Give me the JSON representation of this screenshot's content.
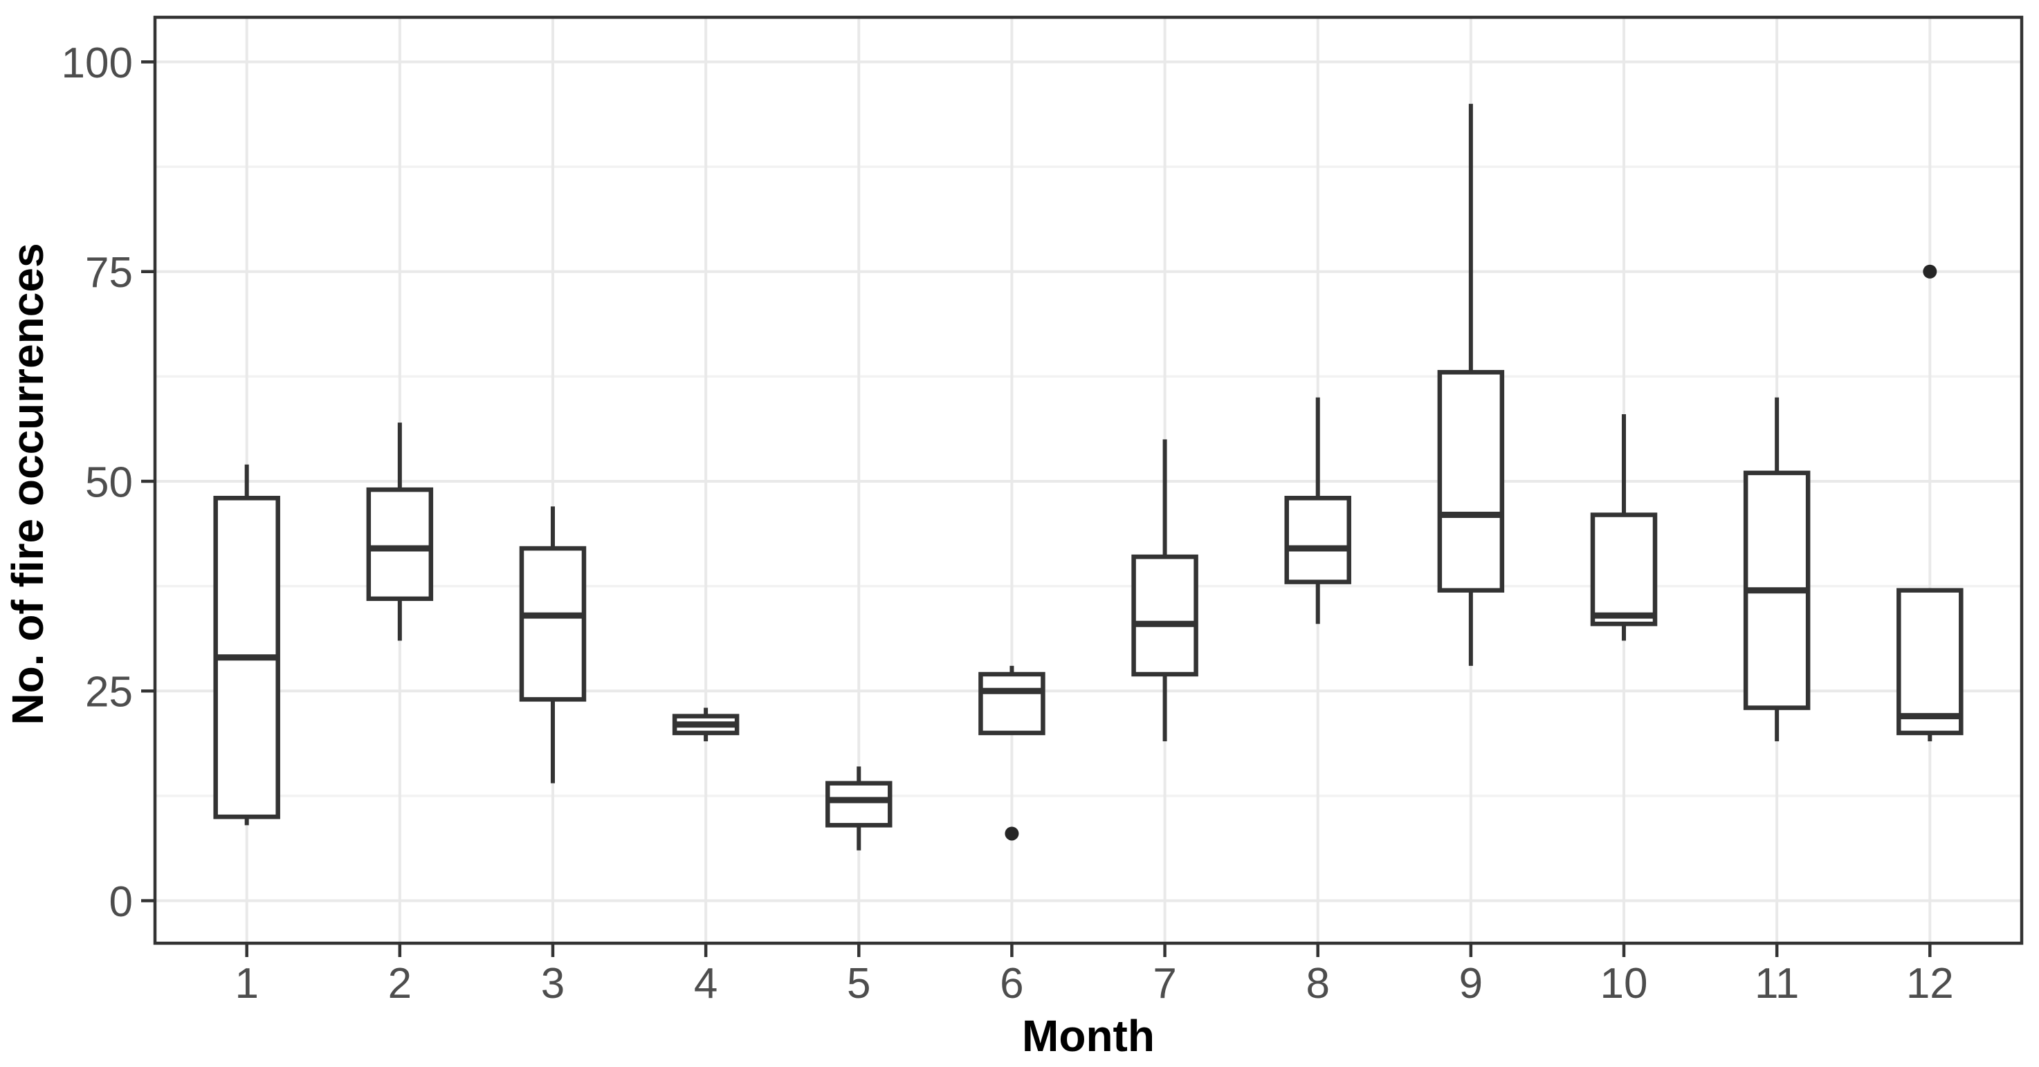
{
  "figure": {
    "background": "#ffffff",
    "description": "Boxplot of number of fire occurrences per month"
  },
  "chart_data": {
    "type": "boxplot",
    "title": "",
    "xlabel": "Month",
    "ylabel": "No. of fire occurrences",
    "x_tick_labels": [
      "1",
      "2",
      "3",
      "4",
      "5",
      "6",
      "7",
      "8",
      "9",
      "10",
      "11",
      "12"
    ],
    "y_tick_labels": [
      "0",
      "25",
      "50",
      "75",
      "100"
    ],
    "y_major_breaks": [
      0,
      25,
      50,
      75,
      100
    ],
    "y_minor_breaks": [
      12.5,
      37.5,
      62.5,
      87.5
    ],
    "ylim": [
      -5.2,
      105.3
    ],
    "xlim_units": [
      0.4,
      12.6
    ],
    "grid": "horizontal major+minor, vertical major at each month",
    "legend": "none",
    "series": [
      {
        "month": "1",
        "min": 9,
        "q1": 10,
        "median": 29,
        "q3": 48,
        "max": 52,
        "outliers": []
      },
      {
        "month": "2",
        "min": 31,
        "q1": 36,
        "median": 42,
        "q3": 49,
        "max": 57,
        "outliers": []
      },
      {
        "month": "3",
        "min": 14,
        "q1": 24,
        "median": 34,
        "q3": 42,
        "max": 47,
        "outliers": []
      },
      {
        "month": "4",
        "min": 19,
        "q1": 20,
        "median": 21,
        "q3": 22,
        "max": 23,
        "outliers": []
      },
      {
        "month": "5",
        "min": 6,
        "q1": 9,
        "median": 12,
        "q3": 14,
        "max": 16,
        "outliers": []
      },
      {
        "month": "6",
        "min": 20,
        "q1": 20,
        "median": 25,
        "q3": 27,
        "max": 28,
        "outliers": [
          8
        ]
      },
      {
        "month": "7",
        "min": 19,
        "q1": 27,
        "median": 33,
        "q3": 41,
        "max": 55,
        "outliers": []
      },
      {
        "month": "8",
        "min": 33,
        "q1": 38,
        "median": 42,
        "q3": 48,
        "max": 60,
        "outliers": []
      },
      {
        "month": "9",
        "min": 28,
        "q1": 37,
        "median": 46,
        "q3": 63,
        "max": 95,
        "outliers": []
      },
      {
        "month": "10",
        "min": 31,
        "q1": 33,
        "median": 34,
        "q3": 46,
        "max": 58,
        "outliers": []
      },
      {
        "month": "11",
        "min": 19,
        "q1": 23,
        "median": 37,
        "q3": 51,
        "max": 60,
        "outliers": []
      },
      {
        "month": "12",
        "min": 19,
        "q1": 20,
        "median": 22,
        "q3": 37,
        "max": 37,
        "outliers": [
          75
        ]
      }
    ],
    "colors": {
      "box_fill": "#ffffff",
      "box_stroke": "#333333",
      "median_stroke": "#333333",
      "whisker_stroke": "#333333",
      "outlier_fill": "#262626",
      "panel_border": "#333333",
      "grid_major": "#e9e9e9",
      "grid_minor": "#f2f2f2",
      "tick_mark": "#333333",
      "tick_label": "#4d4d4d",
      "axis_title": "#000000",
      "background": "#ffffff"
    }
  }
}
